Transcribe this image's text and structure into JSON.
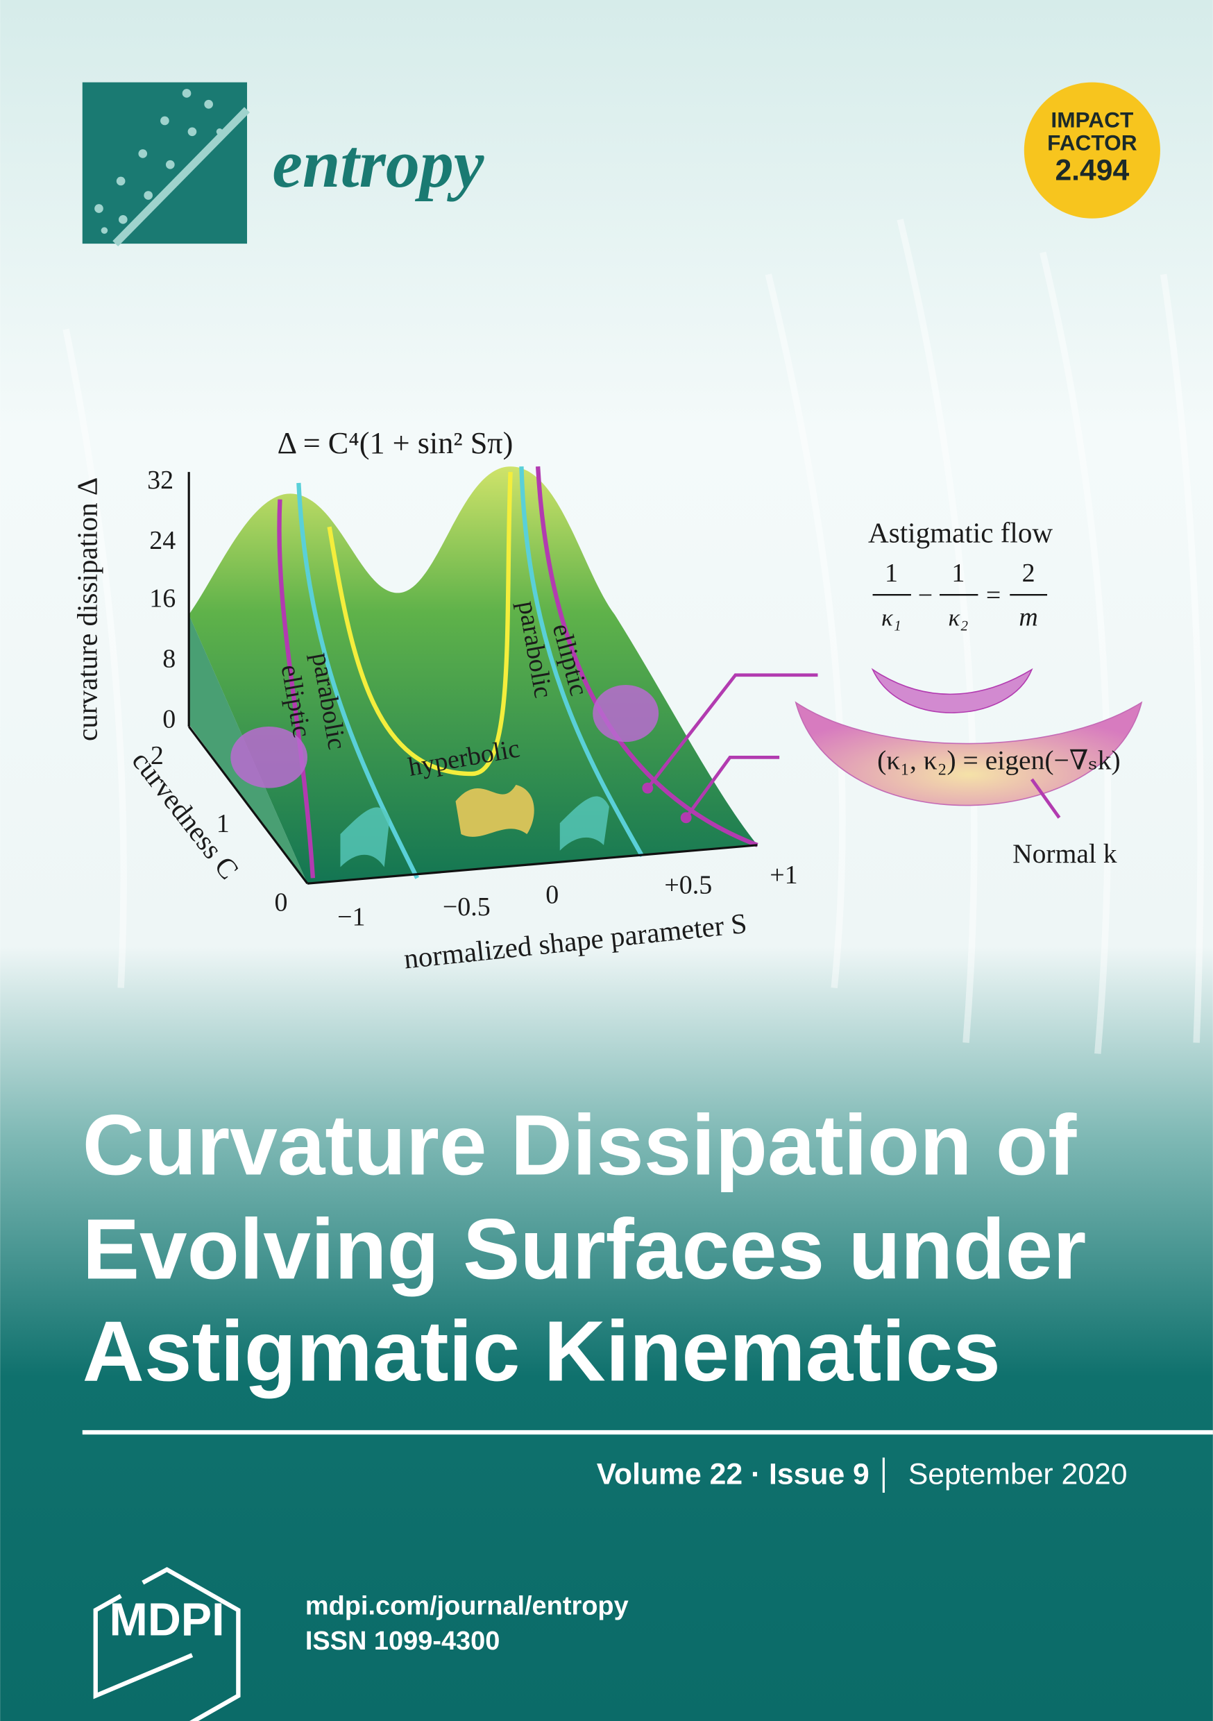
{
  "journal": {
    "name": "entropy",
    "impact_factor": {
      "label": [
        "IMPACT",
        "FACTOR"
      ],
      "value": "2.494"
    }
  },
  "figure": {
    "formula": "Δ = C⁴(1 + sin² Sπ)",
    "y_axis": {
      "label": "curvature dissipation Δ",
      "ticks": [
        "32",
        "24",
        "16",
        "8",
        "0"
      ]
    },
    "c_axis": {
      "label": "curvedness C",
      "ticks": [
        "2",
        "1",
        "0"
      ]
    },
    "s_axis": {
      "label": "normalized shape parameter S",
      "ticks": [
        "−1",
        "−0.5",
        "0",
        "+0.5",
        "+1"
      ]
    },
    "regions": [
      "elliptic",
      "parabolic",
      "hyperbolic",
      "parabolic",
      "elliptic"
    ],
    "inset": {
      "title": "Astigmatic flow",
      "equation": {
        "terms": [
          "1",
          "κ₁",
          "1",
          "κ₂",
          "2",
          "m"
        ],
        "operators": [
          "−",
          "="
        ]
      },
      "eigen": "(κ₁, κ₂) = eigen(−∇ₛk)",
      "normal": "Normal k"
    }
  },
  "article": {
    "title": [
      "Curvature Dissipation of",
      "Evolving Surfaces under",
      "Astigmatic Kinematics"
    ]
  },
  "issue": {
    "volume_issue": "Volume 22 · Issue 9",
    "date": "September 2020"
  },
  "publisher": {
    "name": "MDPI",
    "url": "mdpi.com/journal/entropy",
    "issn": "ISSN 1099-4300"
  }
}
